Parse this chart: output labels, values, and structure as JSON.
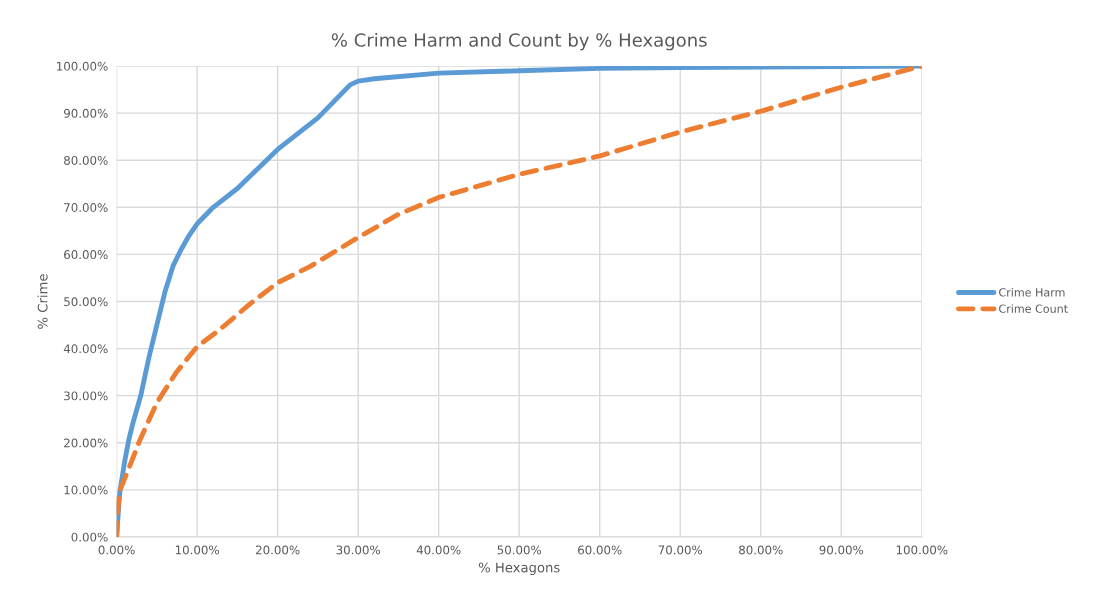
{
  "chart_data": {
    "type": "line",
    "title": "% Crime Harm and Count by % Hexagons",
    "xlabel": "% Hexagons",
    "ylabel": "% Crime",
    "xlim": [
      0,
      100
    ],
    "ylim": [
      0,
      100
    ],
    "xticks": [
      {
        "value": 0,
        "label": "0.00%"
      },
      {
        "value": 10,
        "label": "10.00%"
      },
      {
        "value": 20,
        "label": "20.00%"
      },
      {
        "value": 30,
        "label": "30.00%"
      },
      {
        "value": 40,
        "label": "40.00%"
      },
      {
        "value": 50,
        "label": "50.00%"
      },
      {
        "value": 60,
        "label": "60.00%"
      },
      {
        "value": 70,
        "label": "70.00%"
      },
      {
        "value": 80,
        "label": "80.00%"
      },
      {
        "value": 90,
        "label": "90.00%"
      },
      {
        "value": 100,
        "label": "100.00%"
      }
    ],
    "yticks": [
      {
        "value": 0,
        "label": "0.00%"
      },
      {
        "value": 10,
        "label": "10.00%"
      },
      {
        "value": 20,
        "label": "20.00%"
      },
      {
        "value": 30,
        "label": "30.00%"
      },
      {
        "value": 40,
        "label": "40.00%"
      },
      {
        "value": 50,
        "label": "50.00%"
      },
      {
        "value": 60,
        "label": "60.00%"
      },
      {
        "value": 70,
        "label": "70.00%"
      },
      {
        "value": 80,
        "label": "80.00%"
      },
      {
        "value": 90,
        "label": "90.00%"
      },
      {
        "value": 100,
        "label": "100.00%"
      }
    ],
    "grid": true,
    "legend": "right",
    "marker": "none",
    "series": [
      {
        "name": "Crime Harm",
        "color": "#5b9bd5",
        "line_style": "solid",
        "x": [
          0,
          0.2,
          0.4,
          1,
          1.5,
          2,
          3,
          4,
          5,
          6,
          7,
          8,
          9,
          10,
          12,
          15,
          20,
          25,
          29,
          30,
          32,
          40,
          50,
          60,
          70,
          80,
          90,
          100
        ],
        "values": [
          0,
          5,
          9.5,
          16,
          20.5,
          24,
          30,
          38,
          45,
          52,
          57.5,
          61,
          64,
          66.5,
          70,
          74,
          82.3,
          89,
          96,
          96.8,
          97.3,
          98.5,
          99,
          99.5,
          99.7,
          99.8,
          99.9,
          100
        ]
      },
      {
        "name": "Crime Count",
        "color": "#ed7d31",
        "line_style": "dashed",
        "x": [
          0,
          0.3,
          1.6,
          2.9,
          5,
          7.4,
          10,
          12.8,
          16.5,
          20,
          24,
          30,
          35,
          40,
          50,
          60,
          70,
          80,
          90,
          100
        ],
        "values": [
          0,
          9.4,
          14.9,
          20.6,
          28.5,
          34.9,
          40.4,
          44,
          49.4,
          54,
          57.4,
          63.6,
          68.5,
          72.1,
          77,
          80.9,
          86,
          90.4,
          95.5,
          100
        ]
      }
    ]
  }
}
